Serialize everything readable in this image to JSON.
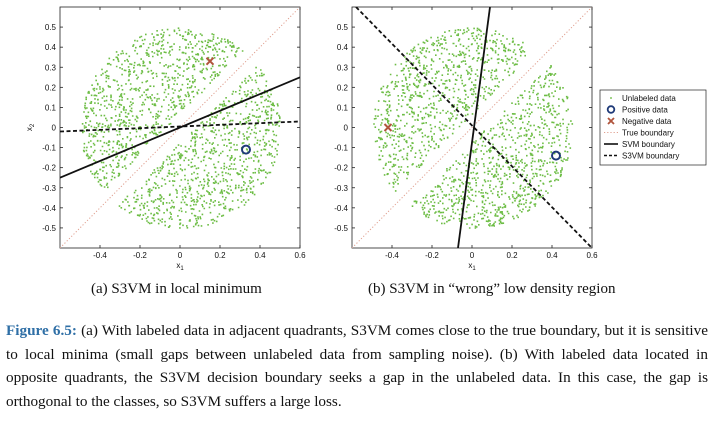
{
  "figure": {
    "label": "Figure 6.5:",
    "caption": "(a) With labeled data in adjacent quadrants, S3VM comes close to the true boundary, but it is sensitive to local minima (small gaps between unlabeled data from sampling noise). (b) With labeled data located in opposite quadrants, the S3VM decision boundary seeks a gap in the unlabeled data. In this case, the gap is orthogonal to the classes, so S3VM suffers a large loss."
  },
  "colors": {
    "unlabeled": "#6dbd45",
    "positive": "#1f3a78",
    "negative": "#b0553d",
    "true_boundary": "#e0a090",
    "svm": "#111111",
    "s3vm": "#111111"
  },
  "chart_data": [
    {
      "type": "scatter",
      "title": "(a) S3VM in local minimum",
      "xlabel": "x1",
      "ylabel": "x2",
      "xlim": [
        -0.6,
        0.6
      ],
      "ylim": [
        -0.6,
        0.6
      ],
      "xticks": [
        "-0.4",
        "-0.2",
        "0",
        "0.2",
        "0.4",
        "0.6"
      ],
      "yticks": [
        "0.5",
        "0.4",
        "0.3",
        "0.2",
        "0.1",
        "0",
        "-0.1",
        "-0.2",
        "-0.3",
        "-0.4",
        "-0.5"
      ],
      "unlabeled_region": {
        "shape": "disk",
        "radius": 0.5,
        "gap_direction": "diagonal",
        "gap_half_width": 0.05
      },
      "points": {
        "positive": [
          [
            0.33,
            -0.11
          ]
        ],
        "negative": [
          [
            0.15,
            0.33
          ]
        ]
      },
      "lines": {
        "true_boundary": [
          [
            -0.6,
            -0.6
          ],
          [
            0.6,
            0.6
          ]
        ],
        "svm_boundary": [
          [
            -0.6,
            -0.25
          ],
          [
            0.6,
            0.25
          ]
        ],
        "s3vm_boundary": [
          [
            -0.6,
            -0.02
          ],
          [
            0.6,
            0.03
          ]
        ]
      }
    },
    {
      "type": "scatter",
      "title": "(b) S3VM in “wrong” low density region",
      "xlabel": "x1",
      "ylabel": "",
      "xlim": [
        -0.6,
        0.6
      ],
      "ylim": [
        -0.6,
        0.6
      ],
      "xticks": [
        "-0.4",
        "-0.2",
        "0",
        "0.2",
        "0.4",
        "0.6"
      ],
      "yticks": [
        "0.5",
        "0.4",
        "0.3",
        "0.2",
        "0.1",
        "0",
        "-0.1",
        "-0.2",
        "-0.3",
        "-0.4",
        "-0.5"
      ],
      "unlabeled_region": {
        "shape": "disk",
        "radius": 0.5,
        "gap_direction": "diagonal",
        "gap_half_width": 0.05
      },
      "points": {
        "positive": [
          [
            0.42,
            -0.14
          ]
        ],
        "negative": [
          [
            -0.42,
            0.0
          ]
        ]
      },
      "lines": {
        "true_boundary": [
          [
            -0.6,
            -0.6
          ],
          [
            0.6,
            0.6
          ]
        ],
        "svm_boundary": [
          [
            -0.07,
            -0.6
          ],
          [
            0.09,
            0.6
          ]
        ],
        "s3vm_boundary": [
          [
            -0.58,
            0.6
          ],
          [
            0.6,
            -0.6
          ]
        ]
      }
    }
  ],
  "legend": {
    "placement": "right",
    "items": [
      {
        "key": "unlabeled",
        "label": "Unlabeled data"
      },
      {
        "key": "positive",
        "label": "Positive data"
      },
      {
        "key": "negative",
        "label": "Negative data"
      },
      {
        "key": "true_boundary",
        "label": "True boundary"
      },
      {
        "key": "svm",
        "label": "SVM boundary"
      },
      {
        "key": "s3vm",
        "label": "S3VM boundary"
      }
    ]
  }
}
